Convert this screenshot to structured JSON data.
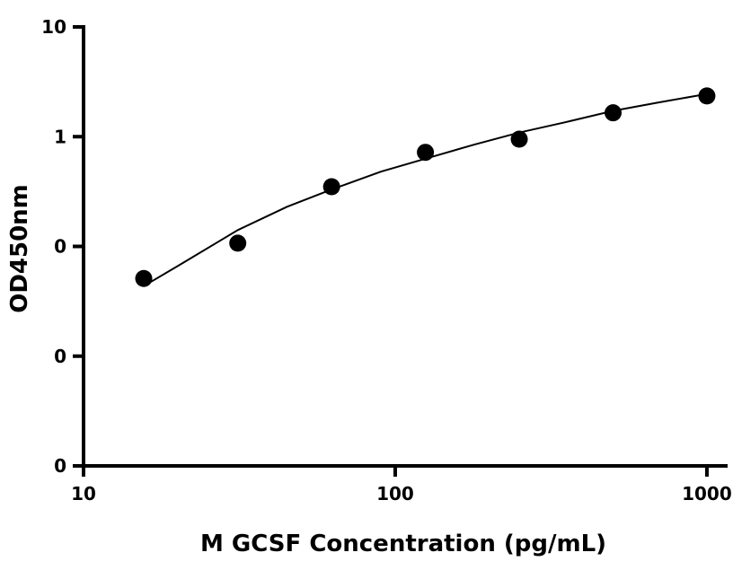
{
  "chart_data": {
    "type": "scatter",
    "title": "",
    "xlabel": "M GCSF Concentration (pg/mL)",
    "ylabel": "OD450nm",
    "x_scale": "log",
    "y_scale": "log",
    "xlim": [
      10,
      1150
    ],
    "ylim": [
      0.001,
      10
    ],
    "x_ticks": [
      {
        "value": 10,
        "label": "10"
      },
      {
        "value": 100,
        "label": "100"
      },
      {
        "value": 1000,
        "label": "1000"
      }
    ],
    "y_ticks": [
      {
        "value": 0.001,
        "label": "0"
      },
      {
        "value": 0.01,
        "label": "0"
      },
      {
        "value": 0.1,
        "label": "0"
      },
      {
        "value": 1,
        "label": "1"
      },
      {
        "value": 10,
        "label": "10"
      }
    ],
    "grid": false,
    "legend": "none",
    "series": [
      {
        "points": [
          {
            "x": 15.6,
            "y": 0.051
          },
          {
            "x": 31.25,
            "y": 0.107
          },
          {
            "x": 62.5,
            "y": 0.35
          },
          {
            "x": 125,
            "y": 0.72
          },
          {
            "x": 250,
            "y": 0.95
          },
          {
            "x": 500,
            "y": 1.65
          },
          {
            "x": 1000,
            "y": 2.35
          }
        ],
        "fit_curve": {
          "x": [
            15.6,
            20,
            31.25,
            45,
            62.5,
            90,
            125,
            180,
            250,
            350,
            500,
            700,
            1000
          ],
          "y": [
            0.0435,
            0.066,
            0.141,
            0.23,
            0.33,
            0.48,
            0.63,
            0.85,
            1.09,
            1.35,
            1.72,
            2.05,
            2.45
          ]
        }
      }
    ],
    "colors": {
      "axis": "#000000",
      "marker": "#000000",
      "curve": "#000000"
    }
  }
}
